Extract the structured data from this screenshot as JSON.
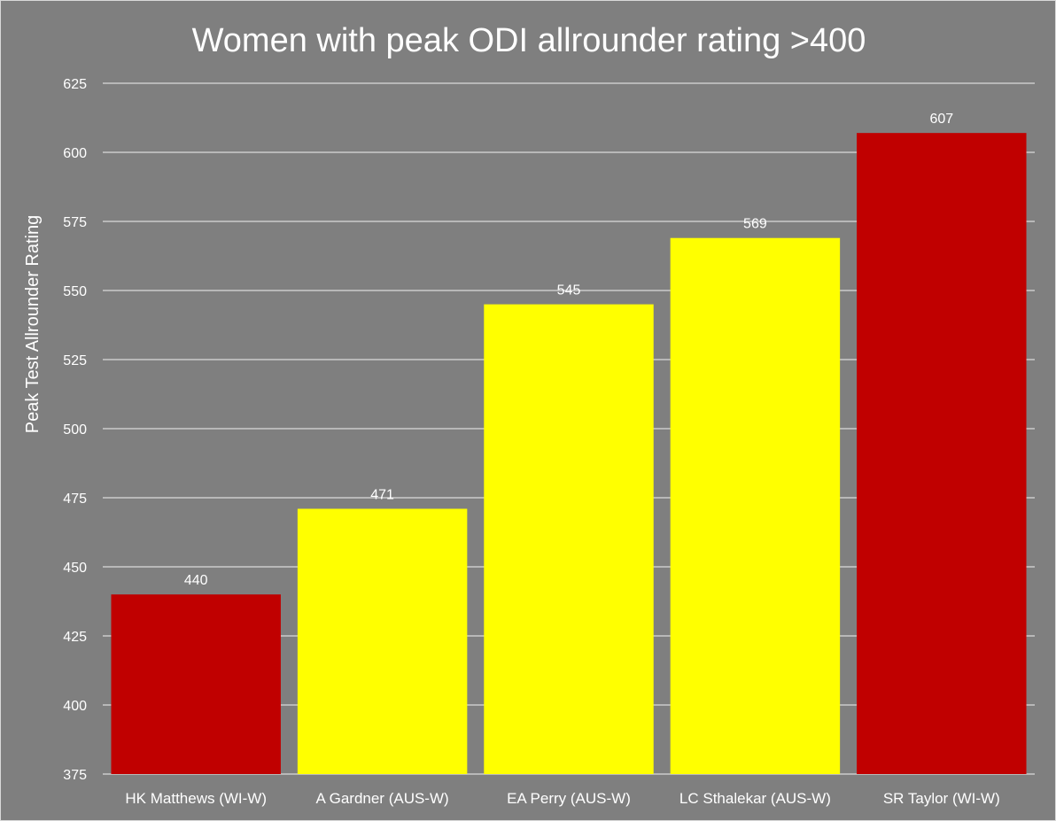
{
  "chart_data": {
    "type": "bar",
    "title": "Women with peak ODI allrounder rating >400",
    "xlabel": "",
    "ylabel": "Peak Test Allrounder Rating",
    "ylim": [
      375,
      625
    ],
    "yticks": [
      375,
      400,
      425,
      450,
      475,
      500,
      525,
      550,
      575,
      600,
      625
    ],
    "grid": true,
    "legend": "none",
    "categories": [
      "HK Matthews (WI-W)",
      "A Gardner (AUS-W)",
      "EA Perry (AUS-W)",
      "LC Sthalekar (AUS-W)",
      "SR Taylor (WI-W)"
    ],
    "values": [
      440,
      471,
      545,
      569,
      607
    ],
    "data_labels": [
      "440",
      "471",
      "545",
      "569",
      "607"
    ],
    "bar_colors": [
      "#c00000",
      "#ffff00",
      "#ffff00",
      "#ffff00",
      "#c00000"
    ]
  },
  "colors": {
    "background": "#7f7f7f",
    "gridline": "#d9d9d9",
    "text": "#ffffff"
  }
}
